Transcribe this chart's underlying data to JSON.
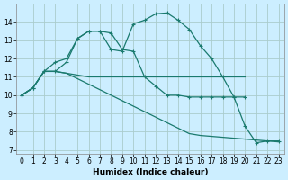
{
  "title": "",
  "xlabel": "Humidex (Indice chaleur)",
  "bg_color": "#cceeff",
  "grid_color": "#aacccc",
  "line_color": "#1a7a6e",
  "xlim": [
    -0.5,
    23.5
  ],
  "ylim": [
    6.8,
    15.0
  ],
  "yticks": [
    7,
    8,
    9,
    10,
    11,
    12,
    13,
    14
  ],
  "xticks": [
    0,
    1,
    2,
    3,
    4,
    5,
    6,
    7,
    8,
    9,
    10,
    11,
    12,
    13,
    14,
    15,
    16,
    17,
    18,
    19,
    20,
    21,
    22,
    23
  ],
  "line1_x": [
    0,
    1,
    2,
    3,
    4,
    5,
    6,
    7,
    8,
    9,
    10,
    11,
    12,
    13,
    14,
    15,
    16,
    17,
    18,
    19,
    20
  ],
  "line1_y": [
    10.0,
    10.4,
    11.3,
    11.3,
    11.8,
    13.1,
    13.5,
    13.5,
    13.4,
    12.5,
    12.4,
    11.0,
    10.5,
    10.0,
    10.0,
    9.9,
    9.9,
    9.9,
    9.9,
    9.9,
    9.9
  ],
  "line2_x": [
    0,
    1,
    2,
    3,
    4,
    5,
    6,
    7,
    8,
    9,
    10,
    11,
    12,
    13,
    14,
    15,
    16,
    17,
    18,
    19,
    20,
    21,
    22,
    23
  ],
  "line2_y": [
    10.0,
    10.4,
    11.3,
    11.8,
    12.0,
    13.1,
    13.5,
    13.5,
    12.5,
    12.4,
    13.9,
    14.1,
    14.45,
    14.5,
    14.1,
    13.6,
    12.7,
    12.0,
    11.0,
    9.9,
    8.3,
    7.4,
    7.5,
    7.5
  ],
  "line3_x": [
    0,
    1,
    2,
    3,
    4,
    5,
    6,
    7,
    8,
    9,
    10,
    11,
    12,
    13,
    14,
    15,
    16,
    17,
    18,
    19,
    20
  ],
  "line3_y": [
    10.0,
    10.4,
    11.3,
    11.3,
    11.2,
    11.1,
    11.0,
    11.0,
    11.0,
    11.0,
    11.0,
    11.0,
    11.0,
    11.0,
    11.0,
    11.0,
    11.0,
    11.0,
    11.0,
    11.0,
    11.0
  ],
  "line4_x": [
    0,
    1,
    2,
    3,
    4,
    5,
    6,
    7,
    8,
    9,
    10,
    11,
    12,
    13,
    14,
    15,
    16,
    17,
    18,
    19,
    20,
    21,
    22,
    23
  ],
  "line4_y": [
    10.0,
    10.4,
    11.3,
    11.3,
    11.2,
    10.9,
    10.6,
    10.3,
    10.0,
    9.7,
    9.4,
    9.1,
    8.8,
    8.5,
    8.2,
    7.9,
    7.8,
    7.75,
    7.7,
    7.65,
    7.6,
    7.55,
    7.5,
    7.45
  ]
}
